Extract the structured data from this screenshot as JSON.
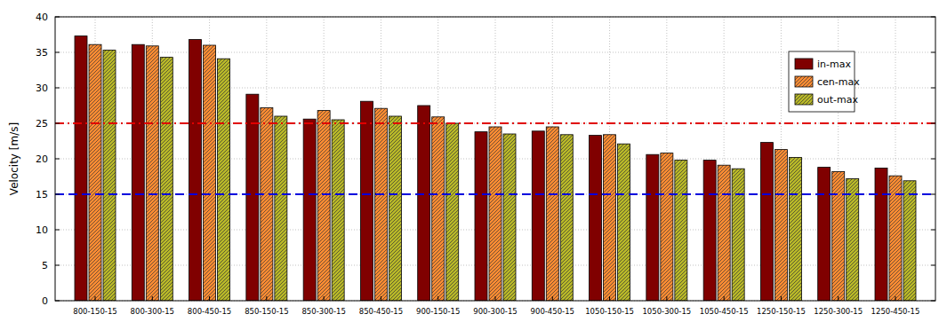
{
  "chart_data": {
    "type": "bar",
    "y_label": "Velocity [m/s]",
    "categories": [
      "800-150-15",
      "800-300-15",
      "800-450-15",
      "850-150-15",
      "850-300-15",
      "850-450-15",
      "900-150-15",
      "900-300-15",
      "900-450-15",
      "1050-150-15",
      "1050-300-15",
      "1050-450-15",
      "1250-150-15",
      "1250-300-15",
      "1250-450-15"
    ],
    "series": [
      {
        "name": "in-max",
        "color": "#800000",
        "values": [
          37.3,
          36.1,
          36.8,
          29.1,
          25.6,
          28.1,
          27.5,
          23.8,
          23.9,
          23.3,
          20.6,
          19.8,
          22.3,
          18.8,
          18.7
        ]
      },
      {
        "name": "cen-max",
        "color": "#ff8c33",
        "values": [
          36.1,
          35.9,
          36.0,
          27.2,
          26.8,
          27.1,
          25.9,
          24.5,
          24.5,
          23.4,
          20.8,
          19.1,
          21.3,
          18.2,
          17.6
        ]
      },
      {
        "name": "out-max",
        "color": "#b8b828",
        "values": [
          35.3,
          34.3,
          34.1,
          26.0,
          25.5,
          26.0,
          25.0,
          23.5,
          23.4,
          22.1,
          19.8,
          18.6,
          20.2,
          17.2,
          16.9
        ]
      }
    ],
    "reference_lines": [
      {
        "value": 25,
        "color": "#e00000",
        "line_style": "dashdot"
      },
      {
        "value": 15,
        "color": "#0000dd",
        "line_style": "dashed"
      }
    ],
    "ylim": [
      0,
      40
    ],
    "yticks": [
      0,
      5,
      10,
      15,
      20,
      25,
      30,
      35,
      40
    ],
    "grid": true,
    "legend": "upper right"
  }
}
